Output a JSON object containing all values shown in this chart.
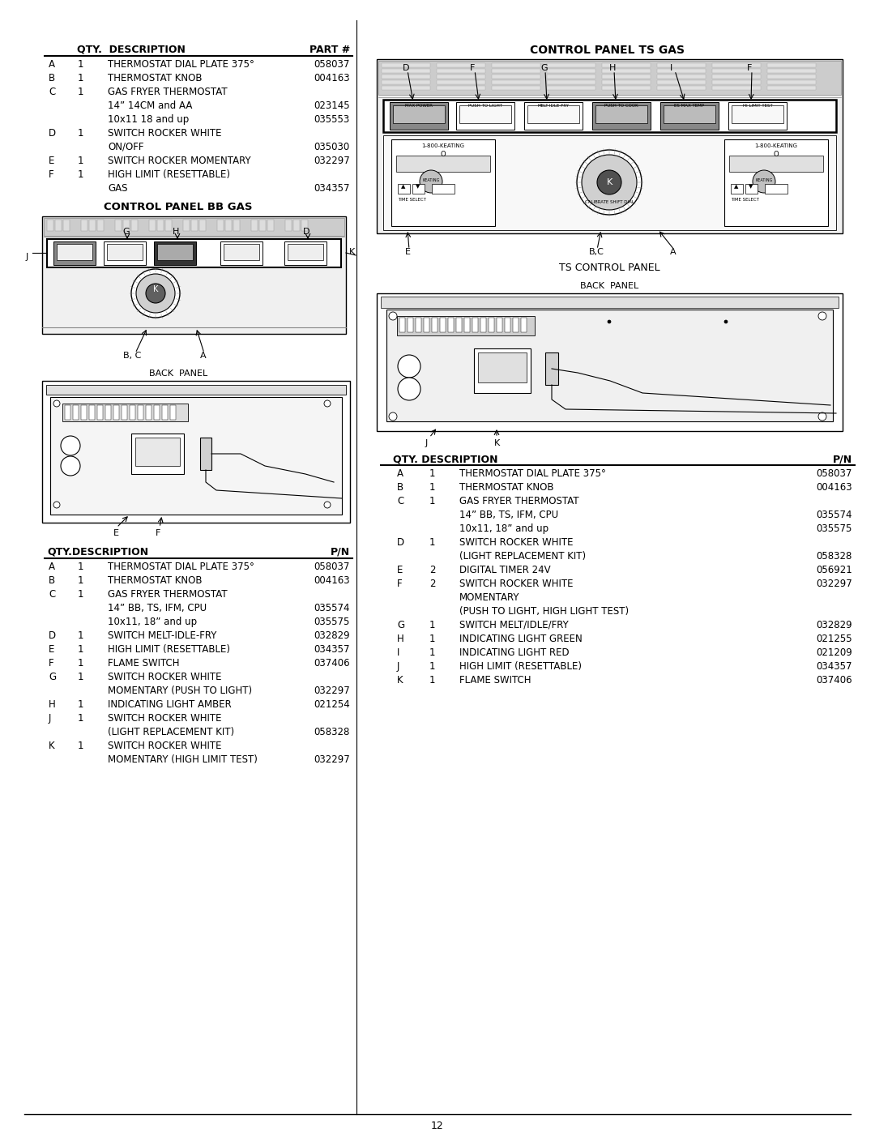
{
  "page_number": "12",
  "bg_color": "#ffffff",
  "left_col": {
    "table1_title": "QTY.  DESCRIPTION",
    "table1_col3_header": "PART #",
    "bb_title": "CONTROL PANEL BB GAS",
    "back_panel_label": "BACK  PANEL",
    "table2_title": "QTY.DESCRIPTION",
    "table2_col3_header": "P/N"
  },
  "right_col": {
    "ts_title": "CONTROL PANEL TS GAS",
    "ts_control_label": "TS CONTROL PANEL",
    "back_panel_label": "BACK  PANEL",
    "table_title": "QTY. DESCRIPTION",
    "table_col3_header": "P/N"
  },
  "table1_rows": [
    [
      "A",
      "1",
      "THERMOSTAT DIAL PLATE 375°",
      "058037"
    ],
    [
      "B",
      "1",
      "THERMOSTAT KNOB",
      "004163"
    ],
    [
      "C",
      "1",
      "GAS FRYER THERMOSTAT",
      ""
    ],
    [
      "",
      "",
      "14” 14CM and AA",
      "023145"
    ],
    [
      "",
      "",
      "10x11 18 and up",
      "035553"
    ],
    [
      "D",
      "1",
      "SWITCH ROCKER WHITE",
      ""
    ],
    [
      "",
      "",
      "ON/OFF",
      "035030"
    ],
    [
      "E",
      "1",
      "SWITCH ROCKER MOMENTARY",
      "032297"
    ],
    [
      "F",
      "1",
      "HIGH LIMIT (RESETTABLE)",
      ""
    ],
    [
      "",
      "",
      "GAS",
      "034357"
    ]
  ],
  "table2_rows": [
    [
      "A",
      "1",
      "THERMOSTAT DIAL PLATE 375°",
      "058037"
    ],
    [
      "B",
      "1",
      "THERMOSTAT KNOB",
      "004163"
    ],
    [
      "C",
      "1",
      "GAS FRYER THERMOSTAT",
      ""
    ],
    [
      "",
      "",
      "14” BB, TS, IFM, CPU",
      "035574"
    ],
    [
      "",
      "",
      "10x11, 18” and up",
      "035575"
    ],
    [
      "D",
      "1",
      "SWITCH MELT-IDLE-FRY",
      "032829"
    ],
    [
      "E",
      "1",
      "HIGH LIMIT (RESETTABLE)",
      "034357"
    ],
    [
      "F",
      "1",
      "FLAME SWITCH",
      "037406"
    ],
    [
      "G",
      "1",
      "SWITCH ROCKER WHITE",
      ""
    ],
    [
      "",
      "",
      "MOMENTARY (PUSH TO LIGHT)",
      "032297"
    ],
    [
      "H",
      "1",
      "INDICATING LIGHT AMBER",
      "021254"
    ],
    [
      "J",
      "1",
      "SWITCH ROCKER WHITE",
      ""
    ],
    [
      "",
      "",
      "(LIGHT REPLACEMENT KIT)",
      "058328"
    ],
    [
      "K",
      "1",
      "SWITCH ROCKER WHITE",
      ""
    ],
    [
      "",
      "",
      "MOMENTARY (HIGH LIMIT TEST)",
      "032297"
    ]
  ],
  "table3_rows": [
    [
      "A",
      "1",
      "THERMOSTAT DIAL PLATE 375°",
      "058037"
    ],
    [
      "B",
      "1",
      "THERMOSTAT KNOB",
      "004163"
    ],
    [
      "C",
      "1",
      "GAS FRYER THERMOSTAT",
      ""
    ],
    [
      "",
      "",
      "14” BB, TS, IFM, CPU",
      "035574"
    ],
    [
      "",
      "",
      "10x11, 18” and up",
      "035575"
    ],
    [
      "D",
      "1",
      "SWITCH ROCKER WHITE",
      ""
    ],
    [
      "",
      "",
      "(LIGHT REPLACEMENT KIT)",
      "058328"
    ],
    [
      "E",
      "2",
      "DIGITAL TIMER 24V",
      "056921"
    ],
    [
      "F",
      "2",
      "SWITCH ROCKER WHITE",
      "032297"
    ],
    [
      "",
      "",
      "MOMENTARY",
      ""
    ],
    [
      "",
      "",
      "(PUSH TO LIGHT, HIGH LIGHT TEST)",
      ""
    ],
    [
      "G",
      "1",
      "SWITCH MELT/IDLE/FRY",
      "032829"
    ],
    [
      "H",
      "1",
      "INDICATING LIGHT GREEN",
      "021255"
    ],
    [
      "I",
      "1",
      "INDICATING LIGHT RED",
      "021209"
    ],
    [
      "J",
      "1",
      "HIGH LIMIT (RESETTABLE)",
      "034357"
    ],
    [
      "K",
      "1",
      "FLAME SWITCH",
      "037406"
    ]
  ]
}
